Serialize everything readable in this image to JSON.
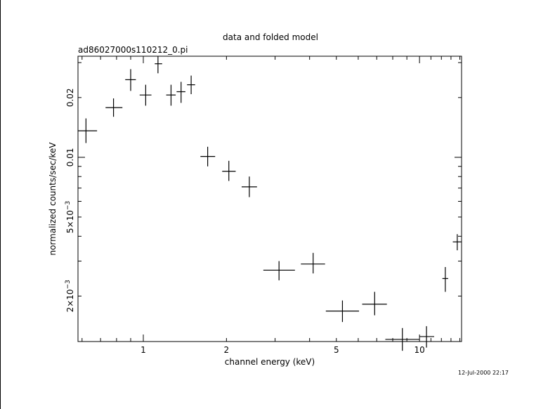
{
  "chart_data": {
    "type": "scatter",
    "title": "data and folded model",
    "subtitle": "ad86027000s110212_0.pi",
    "xlabel": "channel energy (keV)",
    "ylabel": "normalized counts/sec/keV",
    "timestamp": "12-Jul-2000 22:17",
    "x_scale": "log",
    "y_scale": "log",
    "xlim": [
      0.58,
      14.2
    ],
    "ylim": [
      0.00118,
      0.0323
    ],
    "x_ticks": [
      {
        "value": 1,
        "label": "1"
      },
      {
        "value": 2,
        "label": "2"
      },
      {
        "value": 5,
        "label": "5"
      },
      {
        "value": 10,
        "label": "10"
      }
    ],
    "y_ticks": [
      {
        "value": 0.002,
        "label": "2×10",
        "exp": "−3"
      },
      {
        "value": 0.005,
        "label": "5×10",
        "exp": "−3"
      },
      {
        "value": 0.01,
        "label": "0.01",
        "exp": ""
      },
      {
        "value": 0.02,
        "label": "0.02",
        "exp": ""
      }
    ],
    "points": [
      {
        "x": 0.62,
        "xlo": 0.58,
        "xhi": 0.68,
        "y": 0.0136,
        "ylo": 0.0118,
        "yhi": 0.0157
      },
      {
        "x": 0.78,
        "xlo": 0.73,
        "xhi": 0.84,
        "y": 0.0178,
        "ylo": 0.016,
        "yhi": 0.0198
      },
      {
        "x": 0.9,
        "xlo": 0.86,
        "xhi": 0.94,
        "y": 0.0246,
        "ylo": 0.0216,
        "yhi": 0.0278
      },
      {
        "x": 1.02,
        "xlo": 0.97,
        "xhi": 1.07,
        "y": 0.0206,
        "ylo": 0.0182,
        "yhi": 0.0232
      },
      {
        "x": 1.13,
        "xlo": 1.1,
        "xhi": 1.17,
        "y": 0.0296,
        "ylo": 0.0265,
        "yhi": 0.0323
      },
      {
        "x": 1.26,
        "xlo": 1.21,
        "xhi": 1.31,
        "y": 0.0206,
        "ylo": 0.0182,
        "yhi": 0.0232
      },
      {
        "x": 1.37,
        "xlo": 1.32,
        "xhi": 1.42,
        "y": 0.0214,
        "ylo": 0.0188,
        "yhi": 0.024
      },
      {
        "x": 1.49,
        "xlo": 1.44,
        "xhi": 1.54,
        "y": 0.0232,
        "ylo": 0.0208,
        "yhi": 0.0258
      },
      {
        "x": 1.71,
        "xlo": 1.61,
        "xhi": 1.82,
        "y": 0.0101,
        "ylo": 0.009,
        "yhi": 0.0113
      },
      {
        "x": 2.04,
        "xlo": 1.93,
        "xhi": 2.16,
        "y": 0.0085,
        "ylo": 0.0076,
        "yhi": 0.0096
      },
      {
        "x": 2.42,
        "xlo": 2.27,
        "xhi": 2.58,
        "y": 0.0071,
        "ylo": 0.0063,
        "yhi": 0.008
      },
      {
        "x": 3.1,
        "xlo": 2.72,
        "xhi": 3.54,
        "y": 0.0027,
        "ylo": 0.0024,
        "yhi": 0.003
      },
      {
        "x": 4.12,
        "xlo": 3.72,
        "xhi": 4.55,
        "y": 0.0029,
        "ylo": 0.0026,
        "yhi": 0.0033
      },
      {
        "x": 5.26,
        "xlo": 4.58,
        "xhi": 6.04,
        "y": 0.00168,
        "ylo": 0.00148,
        "yhi": 0.0019
      },
      {
        "x": 6.88,
        "xlo": 6.2,
        "xhi": 7.62,
        "y": 0.00182,
        "ylo": 0.0016,
        "yhi": 0.0021
      },
      {
        "x": 8.67,
        "xlo": 7.52,
        "xhi": 10.0,
        "y": 0.00121,
        "ylo": 0.00106,
        "yhi": 0.00138
      },
      {
        "x": 10.6,
        "xlo": 10.0,
        "xhi": 11.3,
        "y": 0.00125,
        "ylo": 0.0011,
        "yhi": 0.00141
      },
      {
        "x": 12.4,
        "xlo": 12.1,
        "xhi": 12.7,
        "y": 0.00245,
        "ylo": 0.0021,
        "yhi": 0.0028
      },
      {
        "x": 13.7,
        "xlo": 13.2,
        "xhi": 14.2,
        "y": 0.00375,
        "ylo": 0.0034,
        "yhi": 0.0041
      }
    ]
  }
}
